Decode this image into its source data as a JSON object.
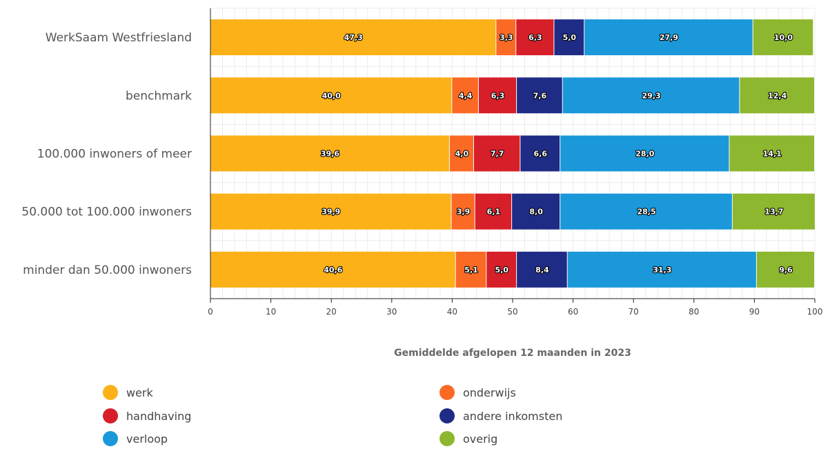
{
  "chart_data": {
    "type": "bar",
    "orientation": "horizontal",
    "stacked": true,
    "categories": [
      "WerkSaam Westfriesland",
      "benchmark",
      "100.000 inwoners of meer",
      "50.000 tot 100.000 inwoners",
      "minder dan 50.000 inwoners"
    ],
    "series": [
      {
        "name": "werk",
        "color": "#FBB117",
        "values": [
          47.3,
          40.0,
          39.6,
          39.9,
          40.6
        ],
        "labels": [
          "47,3",
          "40,0",
          "39,6",
          "39,9",
          "40,6"
        ]
      },
      {
        "name": "onderwijs",
        "color": "#FB6A24",
        "values": [
          3.3,
          4.4,
          4.0,
          3.9,
          5.1
        ],
        "labels": [
          "3,3",
          "4,4",
          "4,0",
          "3,9",
          "5,1"
        ]
      },
      {
        "name": "handhaving",
        "color": "#D71F2A",
        "values": [
          6.3,
          6.3,
          7.7,
          6.1,
          5.0
        ],
        "labels": [
          "6,3",
          "6,3",
          "7,7",
          "6,1",
          "5,0"
        ]
      },
      {
        "name": "andere inkomsten",
        "color": "#1F2C85",
        "values": [
          5.0,
          7.6,
          6.6,
          8.0,
          8.4
        ],
        "labels": [
          "5,0",
          "7,6",
          "6,6",
          "8,0",
          "8,4"
        ]
      },
      {
        "name": "verloop",
        "color": "#1A98D9",
        "values": [
          27.9,
          29.3,
          28.0,
          28.5,
          31.3
        ],
        "labels": [
          "27,9",
          "29,3",
          "28,0",
          "28,5",
          "31,3"
        ]
      },
      {
        "name": "overig",
        "color": "#8DB72E",
        "values": [
          10.0,
          12.4,
          14.1,
          13.7,
          9.6
        ],
        "labels": [
          "10,0",
          "12,4",
          "14,1",
          "13,7",
          "9,6"
        ]
      }
    ],
    "xlabel": "Gemiddelde afgelopen 12 maanden in 2023",
    "xlim": [
      0,
      100
    ],
    "xticks": [
      0,
      10,
      20,
      30,
      40,
      50,
      60,
      70,
      80,
      90,
      100
    ],
    "grid": true,
    "legend": "bottom"
  }
}
